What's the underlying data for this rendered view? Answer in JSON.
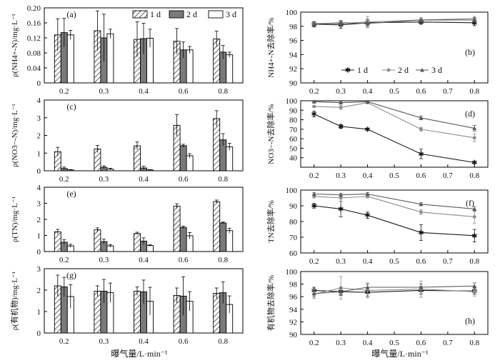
{
  "chart_data": [
    {
      "id": "a",
      "type": "bar",
      "panel_label": "(a)",
      "ylabel": "ρ(NH4+-N)/mg·L⁻¹",
      "categories": [
        "0.2",
        "0.3",
        "0.4",
        "0.6",
        "0.8"
      ],
      "ylim": [
        0,
        0.2
      ],
      "yticks": [
        0,
        0.04,
        0.08,
        0.12,
        0.16,
        0.2
      ],
      "ytick_labels": [
        "0",
        "0.04",
        "0.08",
        "0.12",
        "0.16",
        "0.20"
      ],
      "series": [
        {
          "name": "1 d",
          "values": [
            0.128,
            0.139,
            0.116,
            0.111,
            0.117
          ],
          "errors": [
            0.043,
            0.053,
            0.047,
            0.034,
            0.021
          ]
        },
        {
          "name": "2 d",
          "values": [
            0.134,
            0.12,
            0.118,
            0.088,
            0.082
          ],
          "errors": [
            0.038,
            0.063,
            0.041,
            0.021,
            0.018
          ]
        },
        {
          "name": "3 d",
          "values": [
            0.128,
            0.131,
            0.119,
            0.088,
            0.075
          ],
          "errors": [
            0.012,
            0.012,
            0.024,
            0.009,
            0.007
          ]
        }
      ],
      "legend_position": "top-right"
    },
    {
      "id": "c",
      "type": "bar",
      "panel_label": "(c)",
      "ylabel": "ρ(NO3−-N)/mg·L⁻¹",
      "categories": [
        "0.2",
        "0.3",
        "0.4",
        "0.6",
        "0.8"
      ],
      "ylim": [
        0,
        4
      ],
      "yticks": [
        0,
        1,
        2,
        3,
        4
      ],
      "ytick_labels": [
        "0",
        "1",
        "2",
        "3",
        "4"
      ],
      "series": [
        {
          "name": "1 d",
          "values": [
            1.08,
            1.23,
            1.41,
            2.57,
            2.95
          ],
          "errors": [
            0.25,
            0.2,
            0.22,
            0.6,
            0.45
          ]
        },
        {
          "name": "2 d",
          "values": [
            0.13,
            0.2,
            0.16,
            1.42,
            1.75
          ],
          "errors": [
            0.08,
            0.08,
            0.1,
            0.08,
            0.35
          ]
        },
        {
          "name": "3 d",
          "values": [
            0.05,
            0.09,
            0.05,
            0.85,
            1.35
          ],
          "errors": [
            0.02,
            0.05,
            0.02,
            0.12,
            0.2
          ]
        }
      ]
    },
    {
      "id": "e",
      "type": "bar",
      "panel_label": "(e)",
      "ylabel": "ρ(TN)/mg·L⁻¹",
      "categories": [
        "0.2",
        "0.3",
        "0.4",
        "0.6",
        "0.8"
      ],
      "ylim": [
        0,
        4
      ],
      "yticks": [
        0,
        1,
        2,
        3,
        4
      ],
      "ytick_labels": [
        "0",
        "1",
        "2",
        "3",
        "4"
      ],
      "series": [
        {
          "name": "1 d",
          "values": [
            1.23,
            1.35,
            1.12,
            2.82,
            3.1
          ],
          "errors": [
            0.15,
            0.12,
            0.08,
            0.15,
            0.1
          ]
        },
        {
          "name": "2 d",
          "values": [
            0.58,
            0.62,
            0.65,
            1.5,
            1.78
          ],
          "errors": [
            0.15,
            0.15,
            0.2,
            0.08,
            0.05
          ]
        },
        {
          "name": "3 d",
          "values": [
            0.35,
            0.35,
            0.38,
            0.98,
            1.3
          ],
          "errors": [
            0.1,
            0.08,
            0.05,
            0.2,
            0.15
          ]
        }
      ]
    },
    {
      "id": "g",
      "type": "bar",
      "panel_label": "(g)",
      "ylabel": "ρ(有机物)/mg·L⁻¹",
      "categories": [
        "0.2",
        "0.3",
        "0.4",
        "0.6",
        "0.8"
      ],
      "ylim": [
        0,
        3
      ],
      "yticks": [
        0,
        1,
        2,
        3
      ],
      "ytick_labels": [
        "0",
        "1",
        "2",
        "3"
      ],
      "series": [
        {
          "name": "1 d",
          "values": [
            2.2,
            1.95,
            1.95,
            1.75,
            1.85
          ],
          "errors": [
            0.5,
            0.25,
            0.2,
            0.35,
            0.25
          ]
        },
        {
          "name": "2 d",
          "values": [
            2.15,
            1.95,
            1.92,
            1.72,
            1.88
          ],
          "errors": [
            0.45,
            0.55,
            0.55,
            0.9,
            0.5
          ]
        },
        {
          "name": "3 d",
          "values": [
            1.7,
            1.88,
            1.48,
            1.48,
            1.33
          ],
          "errors": [
            0.55,
            0.45,
            0.65,
            0.45,
            0.4
          ]
        }
      ]
    },
    {
      "id": "b",
      "type": "line",
      "panel_label": "(b)",
      "ylabel": "NH4+-N去除率/%",
      "x": [
        0.2,
        0.3,
        0.4,
        0.6,
        0.8
      ],
      "xlim": [
        0.15,
        0.85
      ],
      "xticks": [
        0.2,
        0.3,
        0.4,
        0.5,
        0.6,
        0.7,
        0.8
      ],
      "xtick_labels": [
        "0.2",
        "0.3",
        "0.4",
        "0.5",
        "0.6",
        "0.7",
        "0.8"
      ],
      "ylim": [
        90,
        100
      ],
      "yticks": [
        90,
        92,
        94,
        96,
        98,
        100
      ],
      "ytick_labels": [
        "90",
        "92",
        "94",
        "96",
        "98",
        "100"
      ],
      "series": [
        {
          "name": "1 d",
          "values": [
            98.3,
            98.2,
            98.5,
            98.6,
            98.5
          ],
          "errors": [
            0.4,
            0.5,
            0.5,
            0.3,
            0.4
          ]
        },
        {
          "name": "2 d",
          "values": [
            98.4,
            98.4,
            98.6,
            98.9,
            99.1
          ],
          "errors": [
            0.3,
            0.4,
            0.8,
            0.3,
            0.3
          ]
        },
        {
          "name": "3 d",
          "values": [
            98.3,
            98.5,
            98.4,
            98.9,
            98.9
          ],
          "errors": [
            0.3,
            0.3,
            0.4,
            0.3,
            0.3
          ]
        }
      ],
      "legend_position": "center"
    },
    {
      "id": "d",
      "type": "line",
      "panel_label": "(d)",
      "ylabel": "NO3−-N去除率/%",
      "x": [
        0.2,
        0.3,
        0.4,
        0.6,
        0.8
      ],
      "xlim": [
        0.15,
        0.85
      ],
      "xticks": [
        0.2,
        0.3,
        0.4,
        0.5,
        0.6,
        0.7,
        0.8
      ],
      "xtick_labels": [
        "0.2",
        "0.3",
        "0.4",
        "0.5",
        "0.6",
        "0.7",
        "0.8"
      ],
      "ylim": [
        30,
        100
      ],
      "yticks": [
        40,
        50,
        60,
        70,
        80,
        90,
        100
      ],
      "ytick_labels": [
        "40",
        "50",
        "60",
        "70",
        "80",
        "90",
        "100"
      ],
      "series": [
        {
          "name": "1 d",
          "values": [
            86,
            73,
            70,
            44,
            35
          ],
          "errors": [
            3,
            2,
            1,
            5,
            1
          ]
        },
        {
          "name": "2 d",
          "values": [
            94,
            93,
            98,
            70,
            61
          ],
          "errors": [
            1,
            2,
            1,
            2,
            4
          ]
        },
        {
          "name": "3 d",
          "values": [
            99,
            98,
            99,
            82,
            71
          ],
          "errors": [
            0.5,
            1,
            0.5,
            2,
            3
          ]
        }
      ]
    },
    {
      "id": "f",
      "type": "line",
      "panel_label": "(f)",
      "ylabel": "TN去除率/%",
      "x": [
        0.2,
        0.3,
        0.4,
        0.6,
        0.8
      ],
      "xlim": [
        0.15,
        0.85
      ],
      "xticks": [
        0.2,
        0.3,
        0.4,
        0.5,
        0.6,
        0.7,
        0.8
      ],
      "xtick_labels": [
        "0.2",
        "0.3",
        "0.4",
        "0.5",
        "0.6",
        "0.7",
        "0.8"
      ],
      "ylim": [
        60,
        100
      ],
      "yticks": [
        60,
        70,
        80,
        90,
        100
      ],
      "ytick_labels": [
        "60",
        "70",
        "80",
        "90",
        "100"
      ],
      "series": [
        {
          "name": "1 d",
          "values": [
            90,
            88,
            84,
            73,
            71
          ],
          "errors": [
            1.5,
            5,
            2,
            5,
            4
          ]
        },
        {
          "name": "2 d",
          "values": [
            96,
            95,
            96,
            86,
            83
          ],
          "errors": [
            1,
            2,
            1,
            1.5,
            4
          ]
        },
        {
          "name": "3 d",
          "values": [
            97.5,
            97,
            97.5,
            91,
            88
          ],
          "errors": [
            1,
            1,
            1,
            1,
            1.5
          ]
        }
      ]
    },
    {
      "id": "h",
      "type": "line",
      "panel_label": "(h)",
      "ylabel": "有机物去除率/%",
      "x": [
        0.2,
        0.3,
        0.4,
        0.6,
        0.8
      ],
      "xlim": [
        0.15,
        0.85
      ],
      "xticks": [
        0.2,
        0.3,
        0.4,
        0.5,
        0.6,
        0.7,
        0.8
      ],
      "xtick_labels": [
        "0.2",
        "0.3",
        "0.4",
        "0.5",
        "0.6",
        "0.7",
        "0.8"
      ],
      "ylim": [
        90,
        100
      ],
      "yticks": [
        90,
        92,
        94,
        96,
        98,
        100
      ],
      "ytick_labels": [
        "90",
        "92",
        "94",
        "96",
        "98",
        "100"
      ],
      "series": [
        {
          "name": "1 d",
          "values": [
            97.0,
            96.8,
            96.7,
            97.0,
            96.9
          ],
          "errors": [
            0.5,
            0.5,
            0.6,
            0.6,
            0.5
          ]
        },
        {
          "name": "2 d",
          "values": [
            96.4,
            97.4,
            97.0,
            97.2,
            96.8
          ],
          "errors": [
            0.7,
            1.8,
            1.2,
            1.3,
            0.7
          ]
        },
        {
          "name": "3 d",
          "values": [
            96.5,
            96.8,
            97.5,
            97.5,
            97.7
          ],
          "errors": [
            0.5,
            0.6,
            0.5,
            0.5,
            0.5
          ]
        }
      ]
    }
  ],
  "x_axis_titles": {
    "left": "曝气量/L·min⁻¹",
    "right": "曝气量/L·min⁻¹"
  },
  "colors": {
    "series_1": "#1a1a1a",
    "series_2": "#8c8c8c",
    "series_3": "#5a5a5a",
    "bar_2": "#7a7a7a",
    "axis": "#000000"
  }
}
